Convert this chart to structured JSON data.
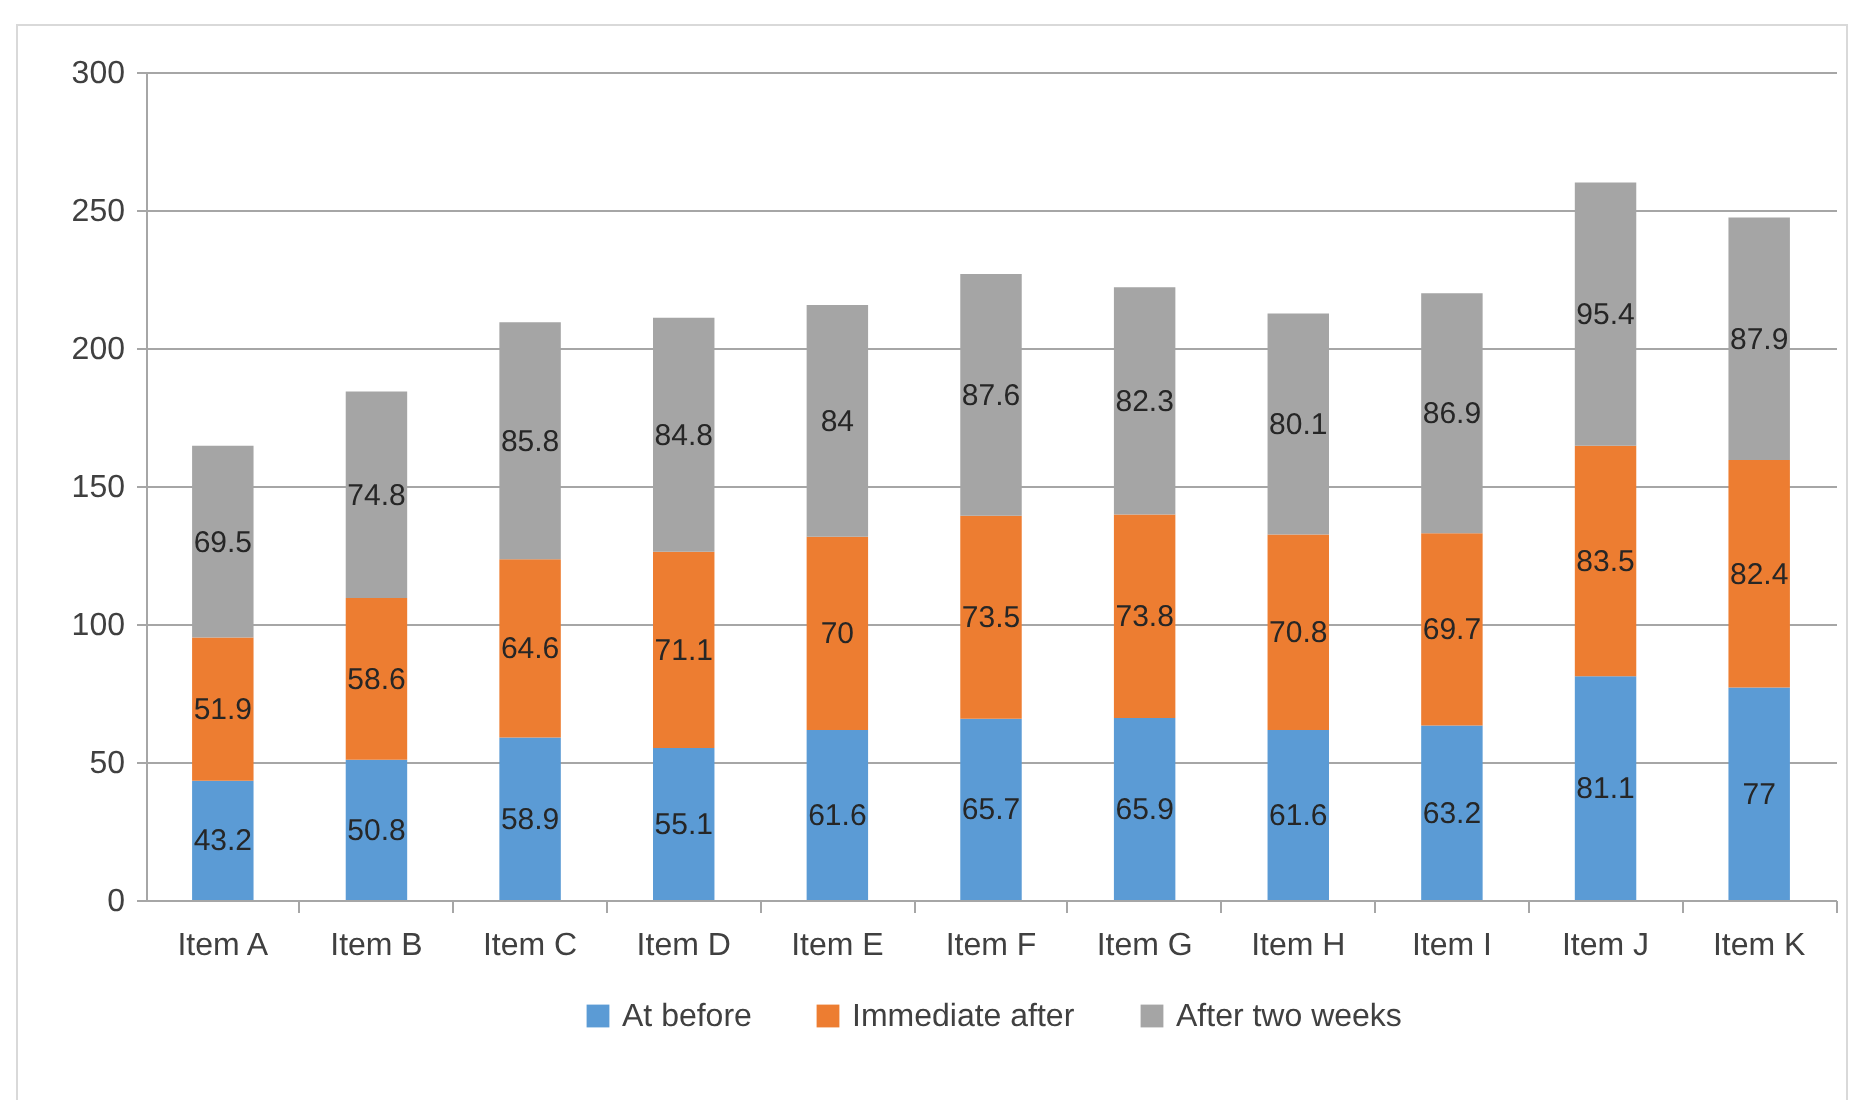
{
  "chart_data": {
    "type": "bar",
    "stacked": true,
    "categories": [
      "Item A",
      "Item B",
      "Item C",
      "Item D",
      "Item E",
      "Item F",
      "Item G",
      "Item H",
      "Item I",
      "Item J",
      "Item K"
    ],
    "series": [
      {
        "name": "At before",
        "color": "#5b9bd5",
        "values": [
          43.2,
          50.8,
          58.9,
          55.1,
          61.6,
          65.7,
          65.9,
          61.6,
          63.2,
          81.1,
          77
        ]
      },
      {
        "name": "Immediate after",
        "color": "#ed7d31",
        "values": [
          51.9,
          58.6,
          64.6,
          71.1,
          70,
          73.5,
          73.8,
          70.8,
          69.7,
          83.5,
          82.4
        ]
      },
      {
        "name": "After two weeks",
        "color": "#a5a5a5",
        "values": [
          69.5,
          74.8,
          85.8,
          84.8,
          84,
          87.6,
          82.3,
          80.1,
          86.9,
          95.4,
          87.9
        ]
      }
    ],
    "ylim": [
      0,
      300
    ],
    "yticks": [
      0,
      50,
      100,
      150,
      200,
      250,
      300
    ],
    "grid": "y",
    "legend": "bottom",
    "data_labels": true
  }
}
